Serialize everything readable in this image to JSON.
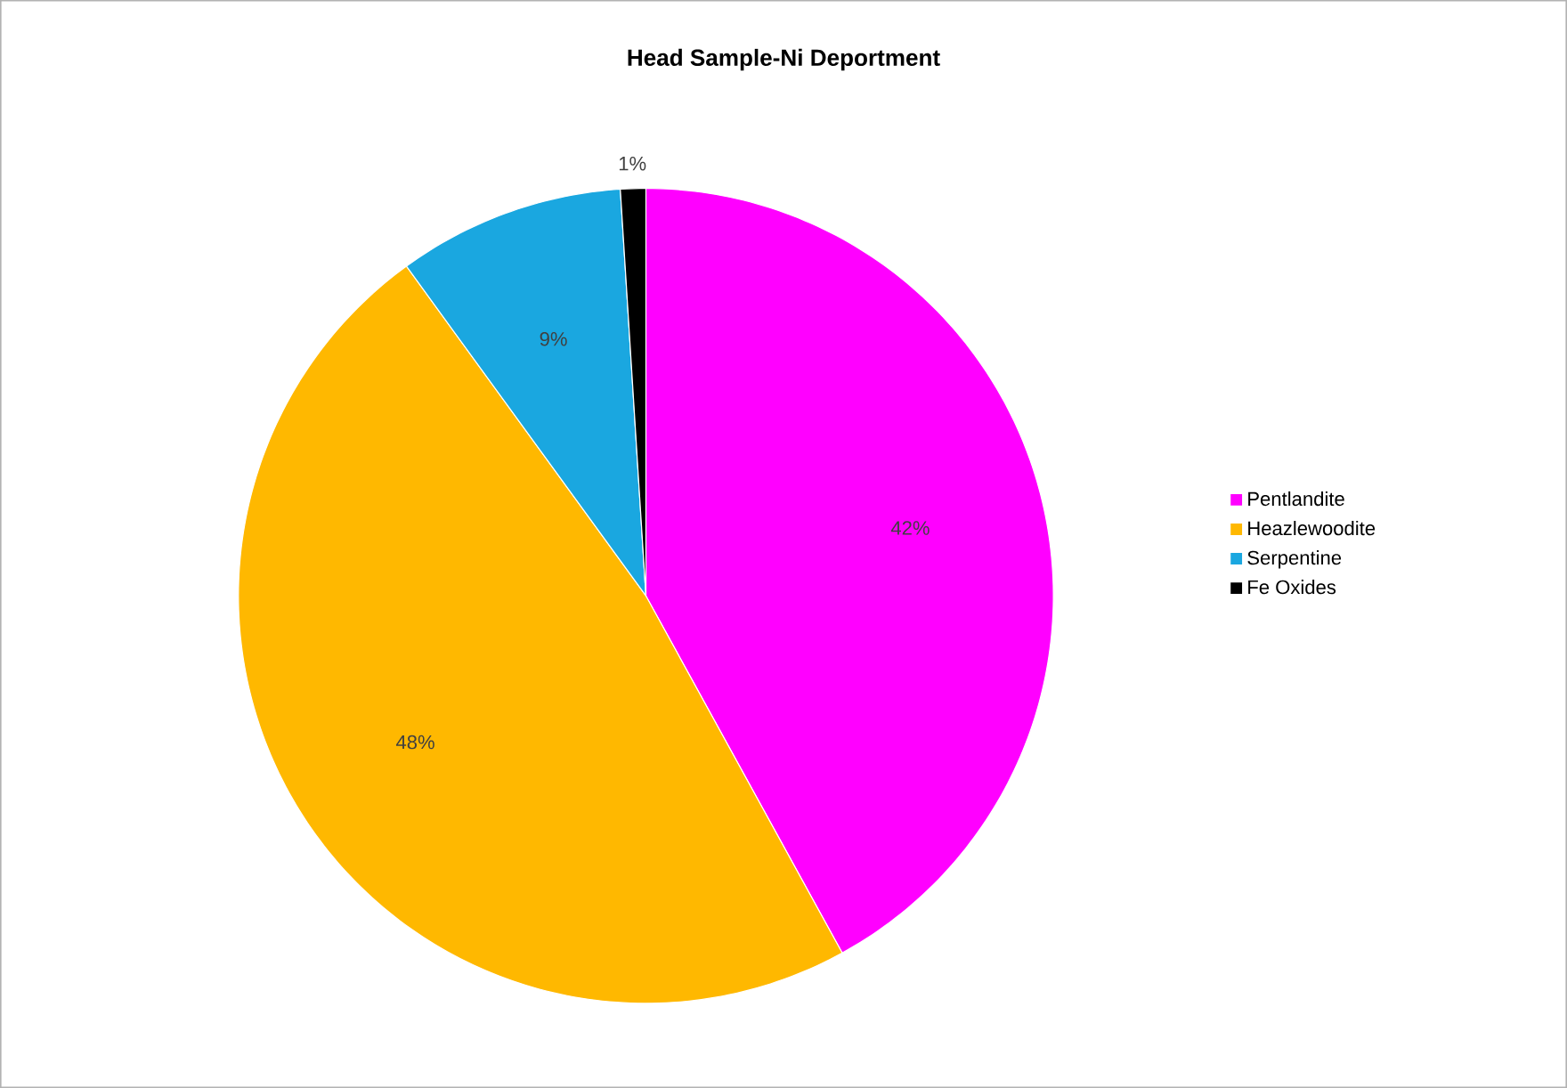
{
  "chart_data": {
    "type": "pie",
    "title": "Head Sample-Ni Deportment",
    "categories": [
      "Pentlandite",
      "Heazlewoodite",
      "Serpentine",
      "Fe Oxides"
    ],
    "values": [
      42,
      48,
      9,
      1
    ],
    "colors": [
      "#ff00ff",
      "#ffb800",
      "#1aa7e0",
      "#000000"
    ],
    "value_labels": [
      "42%",
      "48%",
      "9%",
      "1%"
    ],
    "legend": "right"
  }
}
